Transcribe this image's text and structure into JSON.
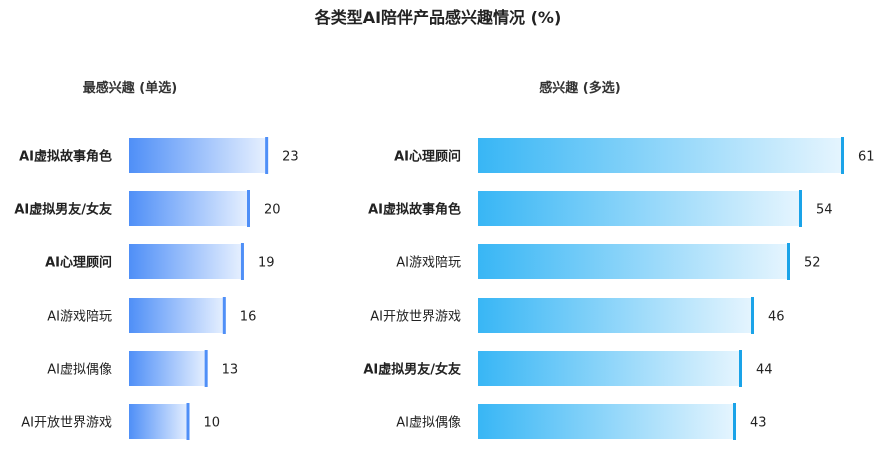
{
  "chart_data": [
    {
      "type": "bar",
      "orientation": "horizontal",
      "title": "各类型AI陪伴产品感兴趣情况 (%)",
      "subtitle": "最感兴趣 (单选)",
      "categories": [
        "AI虚拟故事角色",
        "AI虚拟男友/女友",
        "AI心理顾问",
        "AI游戏陪玩",
        "AI虚拟偶像",
        "AI开放世界游戏"
      ],
      "bold_categories": [
        "AI虚拟故事角色",
        "AI虚拟男友/女友",
        "AI心理顾问"
      ],
      "values": [
        23,
        20,
        19,
        16,
        13,
        10
      ],
      "xlim": [
        0,
        100
      ],
      "colors": {
        "bar_start": "#4f8ff7",
        "bar_end": "#e8f1ff",
        "end_line": "#4f8ff7"
      },
      "grid": false,
      "legend": "none"
    },
    {
      "type": "bar",
      "orientation": "horizontal",
      "subtitle": "感兴趣 (多选)",
      "categories": [
        "AI心理顾问",
        "AI虚拟故事角色",
        "AI游戏陪玩",
        "AI开放世界游戏",
        "AI虚拟男友/女友",
        "AI虚拟偶像"
      ],
      "bold_categories": [
        "AI心理顾问",
        "AI虚拟故事角色",
        "AI虚拟男友/女友"
      ],
      "values": [
        61,
        54,
        52,
        46,
        44,
        43
      ],
      "xlim": [
        0,
        100
      ],
      "colors": {
        "bar_start": "#38b6f5",
        "bar_end": "#e6f5fe",
        "end_line": "#1aa3e8"
      },
      "grid": false,
      "legend": "none"
    }
  ]
}
